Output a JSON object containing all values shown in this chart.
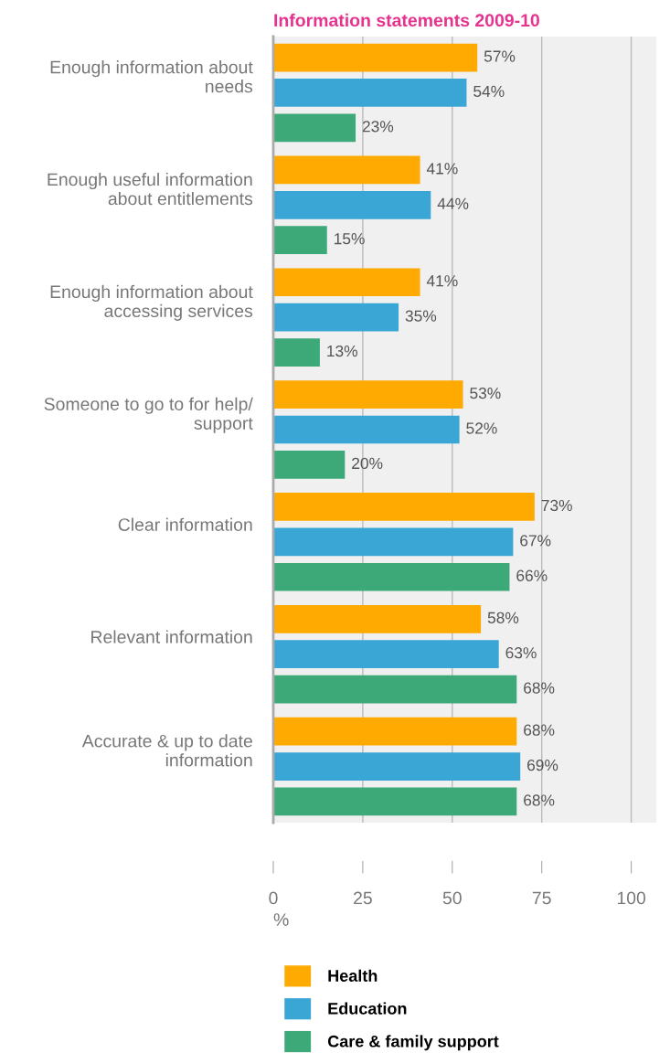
{
  "chart_data": {
    "type": "bar",
    "orientation": "horizontal",
    "title": "Information statements 2009-10",
    "xlabel": "%",
    "categories": [
      "Enough information about\nneeds",
      "Enough useful information\nabout entitlements",
      "Enough information about\naccessing services",
      "Someone to go to for help/\nsupport",
      "Clear information",
      "Relevant information",
      "Accurate & up to date\ninformation"
    ],
    "series": [
      {
        "name": "Health",
        "color": "#ffaa00",
        "values": [
          57,
          41,
          41,
          53,
          73,
          58,
          68
        ],
        "value_labels": [
          "57%",
          "41%",
          "41%",
          "53%",
          "73%",
          "58%",
          "68%"
        ]
      },
      {
        "name": "Education",
        "color": "#3aa6d6",
        "values": [
          54,
          44,
          35,
          52,
          67,
          63,
          69
        ],
        "value_labels": [
          "54%",
          "44%",
          "35%",
          "52%",
          "67%",
          "63%",
          "69%"
        ]
      },
      {
        "name": "Care & family support",
        "color": "#3da878",
        "values": [
          23,
          15,
          13,
          20,
          66,
          68,
          68
        ],
        "value_labels": [
          "23%",
          "15%",
          "13%",
          "20%",
          "66%",
          "68%",
          "68%"
        ]
      }
    ],
    "xlim": [
      0,
      107
    ],
    "xticks": [
      0,
      25,
      50,
      75,
      100
    ],
    "grid": "x",
    "legend": "bottom"
  }
}
